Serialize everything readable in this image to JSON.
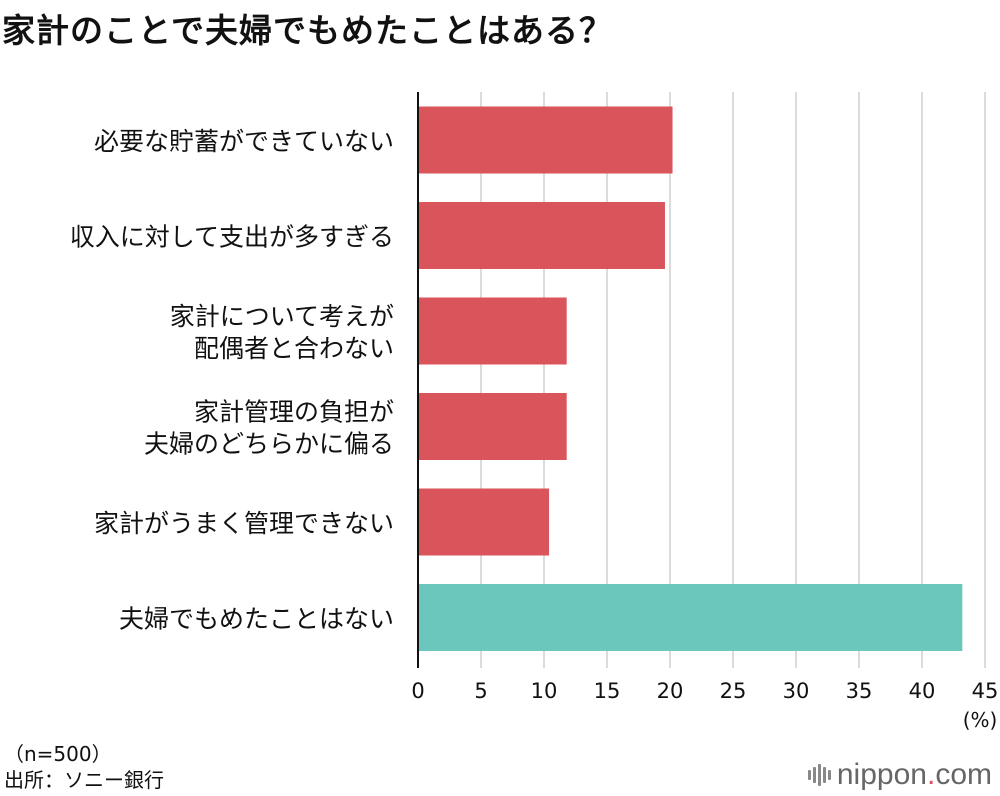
{
  "title": "家計のことで夫婦でもめたことはある？",
  "chart_data": {
    "type": "bar",
    "orientation": "horizontal",
    "categories": [
      [
        "必要な貯蓄ができていない"
      ],
      [
        "収入に対して支出が多すぎる"
      ],
      [
        "家計について考えが",
        "配偶者と合わない"
      ],
      [
        "家計管理の負担が",
        "夫婦のどちらかに偏る"
      ],
      [
        "家計がうまく管理できない"
      ],
      [
        "夫婦でもめたことはない"
      ]
    ],
    "values": [
      20.2,
      19.6,
      11.8,
      11.8,
      10.4,
      43.2
    ],
    "colors": [
      "#d9555b",
      "#d9555b",
      "#d9555b",
      "#d9555b",
      "#d9555b",
      "#6bc7bb"
    ],
    "xlim": [
      0,
      45
    ],
    "xticks": [
      "0",
      "5",
      "10",
      "15",
      "20",
      "25",
      "30",
      "35",
      "40",
      "45"
    ],
    "unit": "(%)",
    "grid": true
  },
  "notes": {
    "sample": "（n=500）",
    "source": "出所：ソニー銀行"
  },
  "logo": {
    "name": "nippon",
    "dot": ".",
    "domain": "com"
  }
}
